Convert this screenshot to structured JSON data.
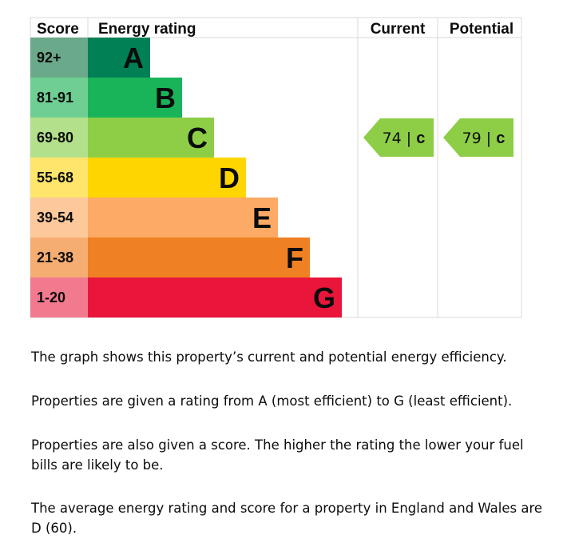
{
  "chart_data": {
    "type": "bar",
    "headers": {
      "score": "Score",
      "rating": "Energy rating",
      "current": "Current",
      "potential": "Potential"
    },
    "bands": [
      {
        "score_range": "92+",
        "letter": "A",
        "color": "#008054",
        "label_color": "#0b0c0c"
      },
      {
        "score_range": "81-91",
        "letter": "B",
        "color": "#19b459",
        "label_color": "#0b0c0c"
      },
      {
        "score_range": "69-80",
        "letter": "C",
        "color": "#8dce46",
        "label_color": "#0b0c0c"
      },
      {
        "score_range": "55-68",
        "letter": "D",
        "color": "#ffd500",
        "label_color": "#0b0c0c"
      },
      {
        "score_range": "39-54",
        "letter": "E",
        "color": "#fcaa65",
        "label_color": "#0b0c0c"
      },
      {
        "score_range": "21-38",
        "letter": "F",
        "color": "#ef8023",
        "label_color": "#0b0c0c"
      },
      {
        "score_range": "1-20",
        "letter": "G",
        "color": "#e9153b",
        "label_color": "#0b0c0c"
      }
    ],
    "score_cell_colors": [
      "#6aa98a",
      "#6fcf93",
      "#b3e08a",
      "#ffe56b",
      "#fdc99a",
      "#f5ad72",
      "#f27a8f"
    ],
    "current": {
      "score": 74,
      "letter": "C",
      "display": "74 | ",
      "color": "#8dce46"
    },
    "potential": {
      "score": 79,
      "letter": "C",
      "display": "79 | ",
      "color": "#8dce46"
    }
  },
  "text": {
    "p1": "The graph shows this property’s current and potential energy efficiency.",
    "p2": "Properties are given a rating from A (most efficient) to G (least efficient).",
    "p3": "Properties are also given a score. The higher the rating the lower your fuel bills are likely to be.",
    "p4": "The average energy rating and score for a property in England and Wales are D (60)."
  }
}
